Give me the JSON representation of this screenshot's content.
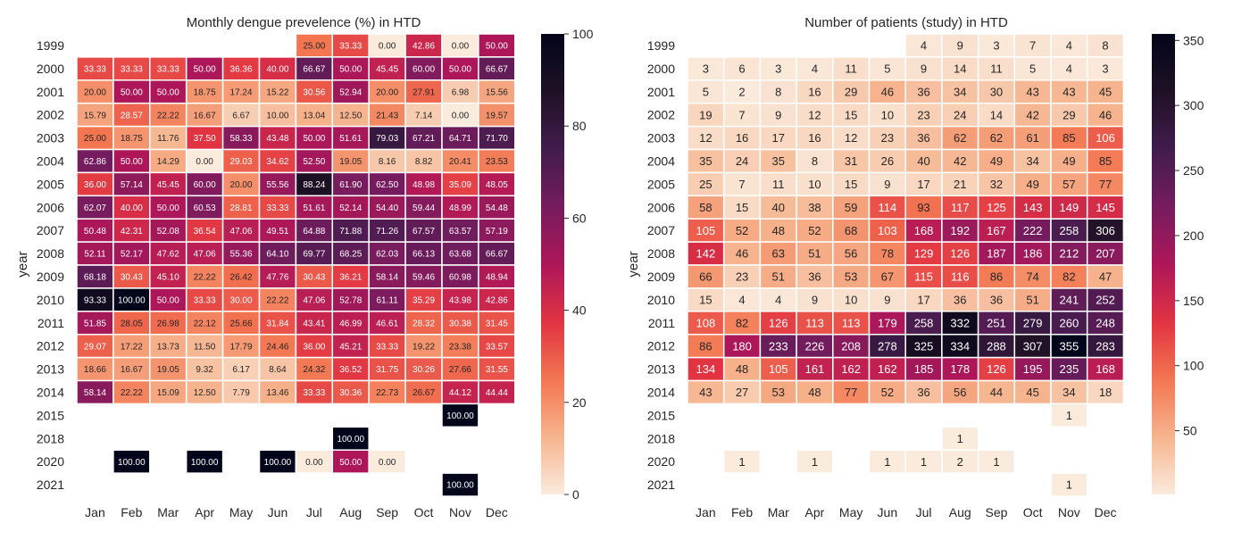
{
  "months": [
    "Jan",
    "Feb",
    "Mar",
    "Apr",
    "May",
    "Jun",
    "Jul",
    "Aug",
    "Sep",
    "Oct",
    "Nov",
    "Dec"
  ],
  "years": [
    "1999",
    "2000",
    "2001",
    "2002",
    "2003",
    "2004",
    "2005",
    "2006",
    "2007",
    "2008",
    "2009",
    "2010",
    "2011",
    "2012",
    "2013",
    "2014",
    "2015",
    "2018",
    "2020",
    "2021"
  ],
  "ylabel": "year",
  "chart_data": [
    {
      "type": "heatmap",
      "title": "Monthly dengue prevelence (%) in HTD",
      "ylabel": "year",
      "xlabel": "",
      "colorbar": {
        "min": 0,
        "max": 100,
        "ticks": [
          "0",
          "20",
          "40",
          "60",
          "80",
          "100"
        ]
      },
      "cell_labels": [
        [
          "",
          "",
          "",
          "",
          "",
          "",
          "25.00",
          "33.33",
          "0.00",
          "42.86",
          "0.00",
          "50.00"
        ],
        [
          "33.33",
          "33.33",
          "33.33",
          "50.00",
          "36.36",
          "40.00",
          "66.67",
          "50.00",
          "45.45",
          "60.00",
          "50.00",
          "66.67"
        ],
        [
          "20.00",
          "50.00",
          "50.00",
          "18.75",
          "17.24",
          "15.22",
          "30.56",
          "52.94",
          "20.00",
          "27.91",
          "6.98",
          "15.56"
        ],
        [
          "15.79",
          "28.57",
          "22.22",
          "16.67",
          "6.67",
          "10.00",
          "13.04",
          "12.50",
          "21.43",
          "7.14",
          "0.00",
          "19.57"
        ],
        [
          "25.00",
          "18.75",
          "11.76",
          "37.50",
          "58.33",
          "43.48",
          "50.00",
          "51.61",
          "79.03",
          "67.21",
          "64.71",
          "71.70"
        ],
        [
          "62.86",
          "50.00",
          "14.29",
          "0.00",
          "29.03",
          "34.62",
          "52.50",
          "19.05",
          "8.16",
          "8.82",
          "20.41",
          "23.53"
        ],
        [
          "36.00",
          "57.14",
          "45.45",
          "60.00",
          "20.00",
          "55.56",
          "88.24",
          "61.90",
          "62.50",
          "48.98",
          "35.09",
          "48.05"
        ],
        [
          "62.07",
          "40.00",
          "50.00",
          "60.53",
          "28.81",
          "33.33",
          "51.61",
          "52.14",
          "54.40",
          "59.44",
          "48.99",
          "54.48"
        ],
        [
          "50.48",
          "42.31",
          "52.08",
          "36.54",
          "47.06",
          "49.51",
          "64.88",
          "71.88",
          "71.26",
          "67.57",
          "63.57",
          "57.19"
        ],
        [
          "52.11",
          "52.17",
          "47.62",
          "47.06",
          "55.36",
          "64.10",
          "69.77",
          "68.25",
          "62.03",
          "66.13",
          "63.68",
          "66.67"
        ],
        [
          "68.18",
          "30.43",
          "45.10",
          "22.22",
          "26.42",
          "47.76",
          "30.43",
          "36.21",
          "58.14",
          "59.46",
          "60.98",
          "48.94"
        ],
        [
          "93.33",
          "100.00",
          "50.00",
          "33.33",
          "30.00",
          "22.22",
          "47.06",
          "52.78",
          "61.11",
          "35.29",
          "43.98",
          "42.86"
        ],
        [
          "51.85",
          "28.05",
          "26.98",
          "22.12",
          "25.66",
          "31.84",
          "43.41",
          "46.99",
          "46.61",
          "28.32",
          "30.38",
          "31.45"
        ],
        [
          "29.07",
          "17.22",
          "13.73",
          "11.50",
          "17.79",
          "24.46",
          "36.00",
          "45.21",
          "33.33",
          "19.22",
          "23.38",
          "33.57"
        ],
        [
          "18.66",
          "16.67",
          "19.05",
          "9.32",
          "6.17",
          "8.64",
          "24.32",
          "36.52",
          "31.75",
          "30.26",
          "27.66",
          "31.55"
        ],
        [
          "58.14",
          "22.22",
          "15.09",
          "12.50",
          "7.79",
          "13.46",
          "33.33",
          "30.36",
          "22.73",
          "26.67",
          "44.12",
          "44.44"
        ],
        [
          "",
          "",
          "",
          "",
          "",
          "",
          "",
          "",
          "",
          "",
          "100.00",
          ""
        ],
        [
          "",
          "",
          "",
          "",
          "",
          "",
          "",
          "100.00",
          "",
          "",
          "",
          ""
        ],
        [
          "",
          "100.00",
          "",
          "100.00",
          "",
          "100.00",
          "0.00",
          "50.00",
          "0.00",
          "",
          "",
          ""
        ],
        [
          "",
          "",
          "",
          "",
          "",
          "",
          "",
          "",
          "",
          "",
          "100.00",
          ""
        ]
      ]
    },
    {
      "type": "heatmap",
      "title": "Number of patients (study) in HTD",
      "ylabel": "year",
      "xlabel": "",
      "colorbar": {
        "min": 1,
        "max": 355,
        "ticks": [
          "50",
          "100",
          "150",
          "200",
          "250",
          "300",
          "350"
        ]
      },
      "cell_labels": [
        [
          "",
          "",
          "",
          "",
          "",
          "",
          "4",
          "9",
          "3",
          "7",
          "4",
          "8"
        ],
        [
          "3",
          "6",
          "3",
          "4",
          "11",
          "5",
          "9",
          "14",
          "11",
          "5",
          "4",
          "3"
        ],
        [
          "5",
          "2",
          "8",
          "16",
          "29",
          "46",
          "36",
          "34",
          "30",
          "43",
          "43",
          "45"
        ],
        [
          "19",
          "7",
          "9",
          "12",
          "15",
          "10",
          "23",
          "24",
          "14",
          "42",
          "29",
          "46"
        ],
        [
          "12",
          "16",
          "17",
          "16",
          "12",
          "23",
          "36",
          "62",
          "62",
          "61",
          "85",
          "106"
        ],
        [
          "35",
          "24",
          "35",
          "8",
          "31",
          "26",
          "40",
          "42",
          "49",
          "34",
          "49",
          "85"
        ],
        [
          "25",
          "7",
          "11",
          "10",
          "15",
          "9",
          "17",
          "21",
          "32",
          "49",
          "57",
          "77"
        ],
        [
          "58",
          "15",
          "40",
          "38",
          "59",
          "114",
          "93",
          "117",
          "125",
          "143",
          "149",
          "145"
        ],
        [
          "105",
          "52",
          "48",
          "52",
          "68",
          "103",
          "168",
          "192",
          "167",
          "222",
          "258",
          "306"
        ],
        [
          "142",
          "46",
          "63",
          "51",
          "56",
          "78",
          "129",
          "126",
          "187",
          "186",
          "212",
          "207"
        ],
        [
          "66",
          "23",
          "51",
          "36",
          "53",
          "67",
          "115",
          "116",
          "86",
          "74",
          "82",
          "47"
        ],
        [
          "15",
          "4",
          "4",
          "9",
          "10",
          "9",
          "17",
          "36",
          "36",
          "51",
          "241",
          "252"
        ],
        [
          "108",
          "82",
          "126",
          "113",
          "113",
          "179",
          "258",
          "332",
          "251",
          "279",
          "260",
          "248"
        ],
        [
          "86",
          "180",
          "233",
          "226",
          "208",
          "278",
          "325",
          "334",
          "288",
          "307",
          "355",
          "283"
        ],
        [
          "134",
          "48",
          "105",
          "161",
          "162",
          "162",
          "185",
          "178",
          "126",
          "195",
          "235",
          "168"
        ],
        [
          "43",
          "27",
          "53",
          "48",
          "77",
          "52",
          "36",
          "56",
          "44",
          "45",
          "34",
          "18"
        ],
        [
          "",
          "",
          "",
          "",
          "",
          "",
          "",
          "",
          "",
          "",
          "1",
          ""
        ],
        [
          "",
          "",
          "",
          "",
          "",
          "",
          "",
          "1",
          "",
          "",
          "",
          ""
        ],
        [
          "",
          "1",
          "",
          "1",
          "",
          "1",
          "1",
          "2",
          "1",
          "",
          "",
          ""
        ],
        [
          "",
          "",
          "",
          "",
          "",
          "",
          "",
          "",
          "",
          "",
          "1",
          ""
        ]
      ]
    }
  ]
}
